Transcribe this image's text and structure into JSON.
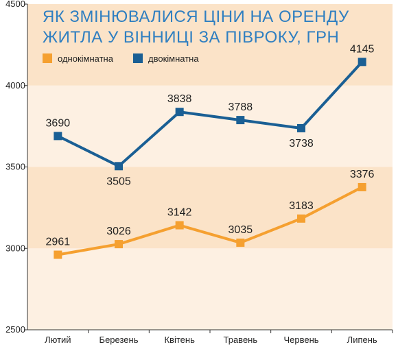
{
  "chart_data": {
    "type": "line",
    "title_lines": [
      "ЯК ЗМІНЮВАЛИСЯ ЦІНИ НА ОРЕНДУ",
      "ЖИТЛА У ВІННИЦІ ЗА ПІВРОКУ, ГРН"
    ],
    "categories": [
      "Лютий",
      "Березень",
      "Квітень",
      "Травень",
      "Червень",
      "Липень"
    ],
    "ylim": [
      2500,
      4500
    ],
    "yticks": [
      "2500",
      "3000",
      "3500",
      "4000",
      "4500"
    ],
    "legend_position": "top-left",
    "grid": false,
    "series": [
      {
        "name": "однокімнатна",
        "color": "#f5a030",
        "values": [
          2961,
          3026,
          3142,
          3035,
          3183,
          3376
        ],
        "labels": [
          "2961",
          "3026",
          "3142",
          "3035",
          "3183",
          "3376"
        ]
      },
      {
        "name": "двокімнатна",
        "color": "#1a5f94",
        "values": [
          3690,
          3505,
          3838,
          3788,
          3738,
          4145
        ],
        "labels": [
          "3690",
          "3505",
          "3838",
          "3788",
          "3738",
          "4145"
        ]
      }
    ],
    "band_colors": [
      "#fbe3c8",
      "#fdf0e2"
    ],
    "title_color": "#2f7fc1"
  }
}
